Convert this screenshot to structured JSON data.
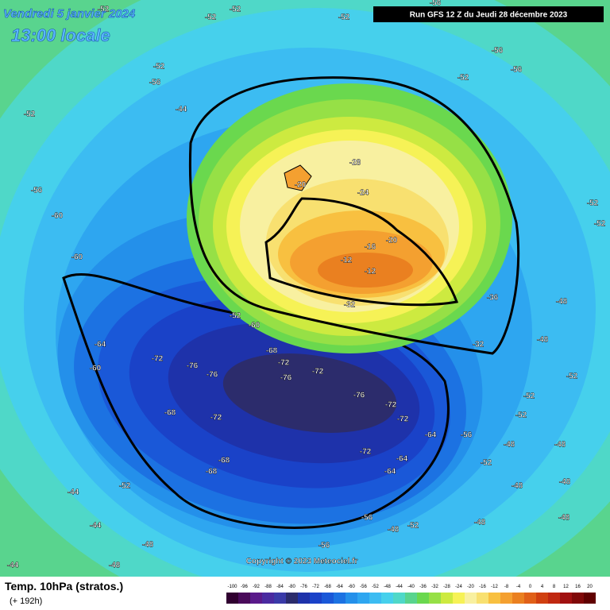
{
  "header": {
    "date": "Vendredi 5 janvier 2024",
    "time": "13:00 locale",
    "run": "Run GFS 12 Z du Jeudi 28 décembre 2023"
  },
  "copyright": "Copyright © 2023 Meteociel.fr",
  "footer": {
    "title": "Temp. 10hPa (stratos.)",
    "lead": "(+ 192h)"
  },
  "scale": {
    "labels": [
      "-100",
      "-96",
      "-92",
      "-88",
      "-84",
      "-80",
      "-76",
      "-72",
      "-68",
      "-64",
      "-60",
      "-56",
      "-52",
      "-48",
      "-44",
      "-40",
      "-36",
      "-32",
      "-28",
      "-24",
      "-20",
      "-16",
      "-12",
      "-8",
      "-4",
      "0",
      "4",
      "8",
      "12",
      "16",
      "20"
    ]
  },
  "map_labels": [
    "-52",
    "-52",
    "-52",
    "-56",
    "-52",
    "-52",
    "-56",
    "-56",
    "-52",
    "-52",
    "-56",
    "-44",
    "-52",
    "-56",
    "-60",
    "-60",
    "-64",
    "-60",
    "-72",
    "-76",
    "-76",
    "-68",
    "-72",
    "-76",
    "-72",
    "-76",
    "-72",
    "-72",
    "-64",
    "-72",
    "-64",
    "-64",
    "-68",
    "-72",
    "-68",
    "-68",
    "-56",
    "-56",
    "-48",
    "-52",
    "-52",
    "-44",
    "-44",
    "-48",
    "-48",
    "-44",
    "-52",
    "-60",
    "-28",
    "-24",
    "-20",
    "-20",
    "-16",
    "-12",
    "-12",
    "-32",
    "-36",
    "-32",
    "-48",
    "-48",
    "-52",
    "-52",
    "-52",
    "-48",
    "-56",
    "-52",
    "-48",
    "-48",
    "-48",
    "-48",
    "-48",
    "-52",
    "-52"
  ]
}
